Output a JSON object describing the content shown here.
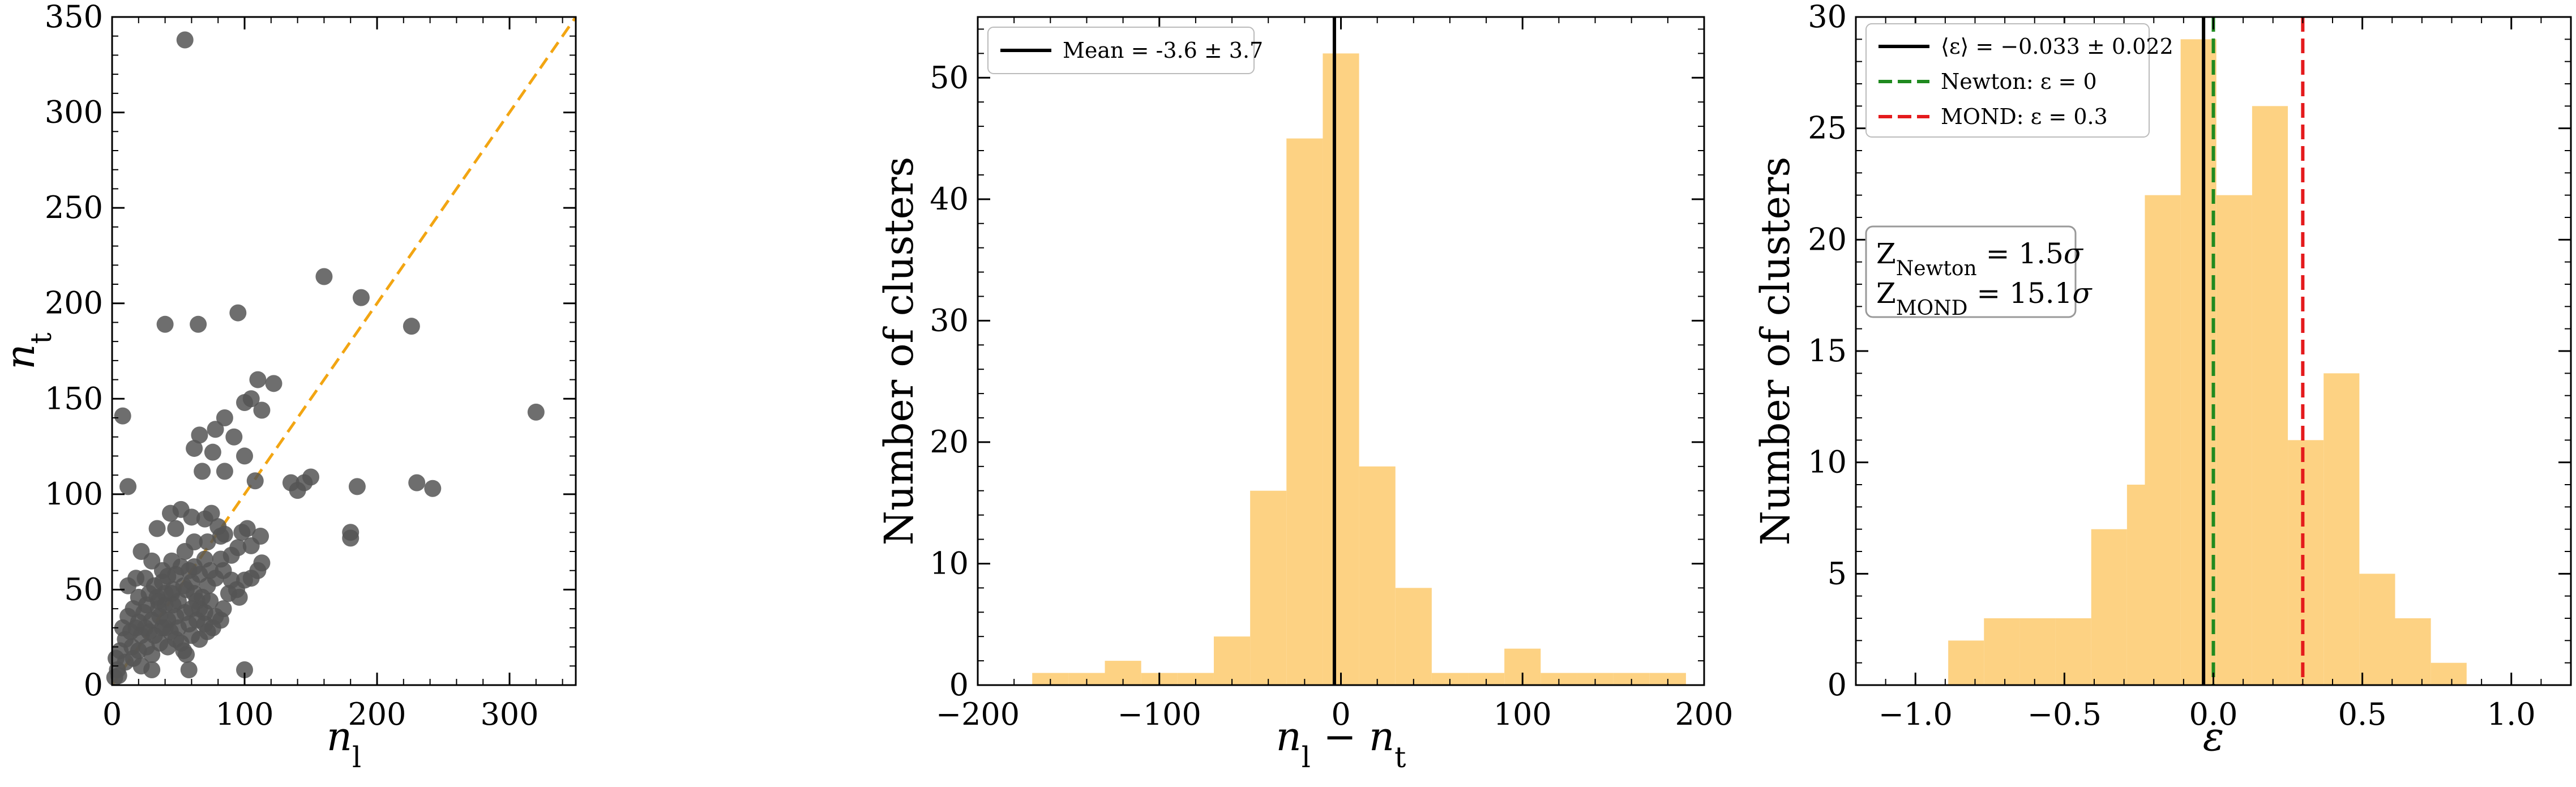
{
  "chart_data": [
    {
      "type": "scatter",
      "title": "",
      "xlabel": "n_l",
      "ylabel": "n_t",
      "xlim": [
        0,
        350
      ],
      "ylim": [
        0,
        350
      ],
      "xticks": [
        0,
        100,
        200,
        300
      ],
      "yticks": [
        0,
        50,
        100,
        150,
        200,
        250,
        300,
        350
      ],
      "xtick_labels": [
        "0",
        "100",
        "200",
        "300"
      ],
      "ytick_labels": [
        "0",
        "50",
        "100",
        "150",
        "200",
        "250",
        "300",
        "350"
      ],
      "reference_line": {
        "style": "dashed",
        "color": "#f2a512",
        "from": [
          0,
          0
        ],
        "to": [
          350,
          350
        ]
      },
      "marker_color": "#555555",
      "points": [
        [
          55,
          338
        ],
        [
          8,
          141
        ],
        [
          40,
          189
        ],
        [
          65,
          189
        ],
        [
          95,
          195
        ],
        [
          160,
          214
        ],
        [
          188,
          203
        ],
        [
          226,
          188
        ],
        [
          320,
          143
        ],
        [
          12,
          104
        ],
        [
          110,
          160
        ],
        [
          122,
          158
        ],
        [
          105,
          150
        ],
        [
          100,
          148
        ],
        [
          113,
          144
        ],
        [
          85,
          140
        ],
        [
          78,
          134
        ],
        [
          92,
          130
        ],
        [
          66,
          131
        ],
        [
          62,
          124
        ],
        [
          76,
          122
        ],
        [
          100,
          120
        ],
        [
          68,
          112
        ],
        [
          85,
          112
        ],
        [
          108,
          107
        ],
        [
          135,
          106
        ],
        [
          145,
          106
        ],
        [
          150,
          109
        ],
        [
          140,
          102
        ],
        [
          185,
          104
        ],
        [
          230,
          106
        ],
        [
          242,
          103
        ],
        [
          180,
          80
        ],
        [
          180,
          77
        ],
        [
          102,
          82
        ],
        [
          112,
          78
        ],
        [
          105,
          73
        ],
        [
          113,
          64
        ],
        [
          95,
          72
        ],
        [
          90,
          68
        ],
        [
          98,
          80
        ],
        [
          70,
          87
        ],
        [
          75,
          90
        ],
        [
          80,
          83
        ],
        [
          85,
          79
        ],
        [
          60,
          88
        ],
        [
          52,
          92
        ],
        [
          44,
          90
        ],
        [
          34,
          82
        ],
        [
          48,
          82
        ],
        [
          25,
          56
        ],
        [
          22,
          70
        ],
        [
          30,
          65
        ],
        [
          55,
          70
        ],
        [
          62,
          75
        ],
        [
          72,
          75
        ],
        [
          82,
          78
        ],
        [
          58,
          60
        ],
        [
          52,
          62
        ],
        [
          48,
          58
        ],
        [
          42,
          57
        ],
        [
          38,
          54
        ],
        [
          32,
          52
        ],
        [
          28,
          48
        ],
        [
          20,
          46
        ],
        [
          18,
          56
        ],
        [
          12,
          52
        ],
        [
          35,
          44
        ],
        [
          40,
          42
        ],
        [
          45,
          48
        ],
        [
          50,
          44
        ],
        [
          56,
          50
        ],
        [
          62,
          48
        ],
        [
          68,
          46
        ],
        [
          74,
          44
        ],
        [
          70,
          38
        ],
        [
          66,
          40
        ],
        [
          60,
          40
        ],
        [
          55,
          38
        ],
        [
          48,
          36
        ],
        [
          42,
          34
        ],
        [
          36,
          36
        ],
        [
          30,
          34
        ],
        [
          24,
          38
        ],
        [
          18,
          30
        ],
        [
          14,
          28
        ],
        [
          10,
          24
        ],
        [
          22,
          26
        ],
        [
          28,
          28
        ],
        [
          32,
          26
        ],
        [
          38,
          30
        ],
        [
          44,
          28
        ],
        [
          50,
          30
        ],
        [
          58,
          32
        ],
        [
          64,
          34
        ],
        [
          70,
          32
        ],
        [
          76,
          30
        ],
        [
          82,
          34
        ],
        [
          88,
          48
        ],
        [
          94,
          50
        ],
        [
          100,
          55
        ],
        [
          105,
          56
        ],
        [
          110,
          60
        ],
        [
          96,
          46
        ],
        [
          72,
          52
        ],
        [
          78,
          56
        ],
        [
          84,
          60
        ],
        [
          90,
          55
        ],
        [
          66,
          58
        ],
        [
          60,
          54
        ],
        [
          54,
          52
        ],
        [
          46,
          50
        ],
        [
          40,
          48
        ],
        [
          34,
          46
        ],
        [
          26,
          42
        ],
        [
          16,
          40
        ],
        [
          12,
          36
        ],
        [
          8,
          30
        ],
        [
          6,
          18
        ],
        [
          4,
          8
        ],
        [
          2,
          4
        ],
        [
          3,
          14
        ],
        [
          10,
          12
        ],
        [
          16,
          14
        ],
        [
          20,
          18
        ],
        [
          26,
          20
        ],
        [
          30,
          16
        ],
        [
          36,
          22
        ],
        [
          42,
          20
        ],
        [
          48,
          24
        ],
        [
          54,
          18
        ],
        [
          56,
          16
        ],
        [
          52,
          22
        ],
        [
          60,
          26
        ],
        [
          66,
          24
        ],
        [
          72,
          28
        ],
        [
          78,
          36
        ],
        [
          84,
          40
        ],
        [
          62,
          62
        ],
        [
          70,
          66
        ],
        [
          45,
          65
        ],
        [
          38,
          60
        ],
        [
          20,
          33
        ],
        [
          25,
          30
        ],
        [
          35,
          40
        ],
        [
          15,
          20
        ],
        [
          100,
          8
        ],
        [
          58,
          8
        ],
        [
          5,
          5
        ],
        [
          22,
          10
        ],
        [
          30,
          8
        ],
        [
          40,
          30
        ],
        [
          46,
          42
        ],
        [
          64,
          44
        ],
        [
          74,
          60
        ],
        [
          82,
          66
        ]
      ]
    },
    {
      "type": "bar",
      "subtype": "histogram",
      "title": "",
      "xlabel": "n_l − n_t",
      "ylabel": "Number of clusters",
      "xlim": [
        -200,
        200
      ],
      "ylim": [
        0,
        55
      ],
      "xticks": [
        -200,
        -100,
        0,
        100,
        200
      ],
      "yticks": [
        0,
        10,
        20,
        30,
        40,
        50
      ],
      "xtick_labels": [
        "−200",
        "−100",
        "0",
        "100",
        "200"
      ],
      "ytick_labels": [
        "0",
        "10",
        "20",
        "30",
        "40",
        "50"
      ],
      "bar_color": "#fdd283",
      "bin_width": 20,
      "bins": [
        {
          "left": -170,
          "count": 1
        },
        {
          "left": -150,
          "count": 1
        },
        {
          "left": -130,
          "count": 2
        },
        {
          "left": -110,
          "count": 1
        },
        {
          "left": -90,
          "count": 1
        },
        {
          "left": -70,
          "count": 4
        },
        {
          "left": -50,
          "count": 16
        },
        {
          "left": -30,
          "count": 45
        },
        {
          "left": -10,
          "count": 52
        },
        {
          "left": 10,
          "count": 18
        },
        {
          "left": 30,
          "count": 8
        },
        {
          "left": 50,
          "count": 1
        },
        {
          "left": 70,
          "count": 1
        },
        {
          "left": 90,
          "count": 3
        },
        {
          "left": 110,
          "count": 1
        },
        {
          "left": 130,
          "count": 1
        },
        {
          "left": 150,
          "count": 1
        },
        {
          "left": 170,
          "count": 1
        }
      ],
      "vline": {
        "x": -3.6,
        "color": "#000000",
        "style": "solid"
      },
      "legend": {
        "position": "top-left",
        "entries": [
          {
            "label": "Mean = -3.6 ± 3.7",
            "color": "#000000",
            "style": "solid"
          }
        ]
      }
    },
    {
      "type": "bar",
      "subtype": "histogram",
      "title": "",
      "xlabel": "ε",
      "ylabel": "Number of clusters",
      "xlim": [
        -1.2,
        1.2
      ],
      "ylim": [
        0,
        30
      ],
      "xticks": [
        -1.0,
        -0.5,
        0.0,
        0.5,
        1.0
      ],
      "yticks": [
        0,
        5,
        10,
        15,
        20,
        25,
        30
      ],
      "xtick_labels": [
        "−1.0",
        "−0.5",
        "0.0",
        "0.5",
        "1.0"
      ],
      "ytick_labels": [
        "0",
        "5",
        "10",
        "15",
        "20",
        "25",
        "30"
      ],
      "bar_color": "#fdd283",
      "bin_width": 0.12,
      "bins": [
        {
          "left": -0.89,
          "count": 2
        },
        {
          "left": -0.77,
          "count": 3
        },
        {
          "left": -0.65,
          "count": 3
        },
        {
          "left": -0.53,
          "count": 3
        },
        {
          "left": -0.41,
          "count": 7
        },
        {
          "left": -0.29,
          "count": 9
        },
        {
          "left": -0.23,
          "count": 22
        },
        {
          "left": -0.11,
          "count": 29
        },
        {
          "left": 0.01,
          "count": 22
        },
        {
          "left": 0.13,
          "count": 26
        },
        {
          "left": 0.25,
          "count": 11
        },
        {
          "left": 0.37,
          "count": 14
        },
        {
          "left": 0.49,
          "count": 5
        },
        {
          "left": 0.61,
          "count": 3
        },
        {
          "left": 0.73,
          "count": 1
        }
      ],
      "vlines": [
        {
          "x": -0.033,
          "color": "#000000",
          "style": "solid"
        },
        {
          "x": 0.0,
          "color": "#1f8a1f",
          "style": "dashed"
        },
        {
          "x": 0.3,
          "color": "#e41a1c",
          "style": "dashed"
        }
      ],
      "legend": {
        "position": "top-left",
        "entries": [
          {
            "label": "⟨ε⟩ = −0.033 ± 0.022",
            "color": "#000000",
            "style": "solid"
          },
          {
            "label": "Newton: ε = 0",
            "color": "#1f8a1f",
            "style": "dashed"
          },
          {
            "label": "MOND: ε = 0.3",
            "color": "#e41a1c",
            "style": "dashed"
          }
        ]
      },
      "annotation": {
        "lines": [
          "Z_Newton = 1.5σ",
          "Z_MOND = 15.1σ"
        ]
      }
    }
  ]
}
